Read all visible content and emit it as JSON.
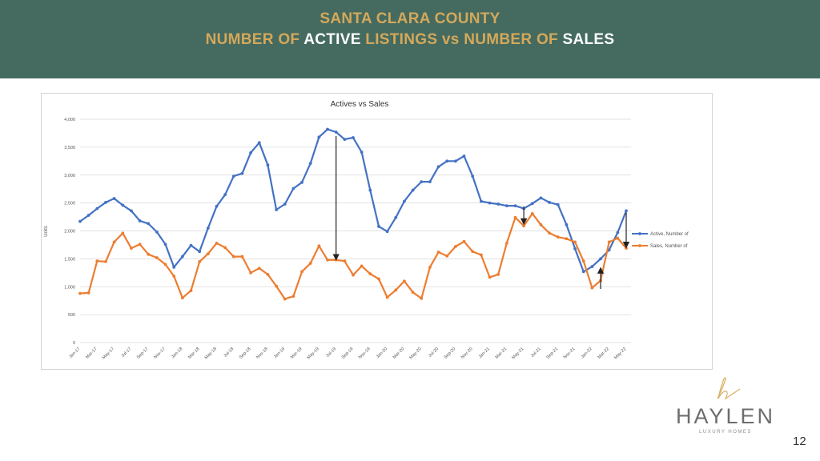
{
  "header": {
    "title_line1": "SANTA CLARA COUNTY",
    "title_line2_parts": [
      {
        "text": "NUMBER OF ",
        "color": "gold"
      },
      {
        "text": "ACTIVE",
        "color": "white"
      },
      {
        "text": " LISTINGS vs ",
        "color": "gold"
      },
      {
        "text": "NUMBER OF ",
        "color": "gold"
      },
      {
        "text": "SALES",
        "color": "white"
      }
    ],
    "background_color": "#456b60",
    "gold_color": "#d4a85a"
  },
  "chart_data": {
    "type": "line",
    "title": "Actives vs Sales",
    "ylabel": "Units",
    "xlabel": "",
    "ylim": [
      0,
      4000
    ],
    "yticks": [
      "0",
      "500",
      "1,000",
      "1,500",
      "2,000",
      "2,500",
      "3,000",
      "3,500",
      "4,000"
    ],
    "xtick_labels": [
      "Jan-17",
      "Mar-17",
      "May-17",
      "Jul-17",
      "Sep-17",
      "Nov-17",
      "Jan-18",
      "Mar-18",
      "May-18",
      "Jul-18",
      "Sep-18",
      "Nov-18",
      "Jan-19",
      "Mar-19",
      "May-19",
      "Jul-19",
      "Sep-19",
      "Nov-19",
      "Jan-20",
      "Mar-20",
      "May-20",
      "Jul-20",
      "Sep-20",
      "Nov-20",
      "Jan-21",
      "Mar-21",
      "May-21",
      "Jul-21",
      "Sep-21",
      "Nov-21",
      "Jan-22",
      "Mar-22",
      "May-22"
    ],
    "grid": "horizontal",
    "legend_position": "right",
    "series": [
      {
        "name": "Active, Number of",
        "color": "#4472c4",
        "values": [
          2170,
          2280,
          2400,
          2510,
          2580,
          2460,
          2360,
          2180,
          2130,
          1980,
          1760,
          1350,
          1540,
          1740,
          1630,
          2050,
          2440,
          2650,
          2980,
          3030,
          3400,
          3580,
          3180,
          2380,
          2480,
          2760,
          2870,
          3210,
          3680,
          3820,
          3770,
          3640,
          3670,
          3410,
          2730,
          2080,
          1990,
          2240,
          2530,
          2730,
          2880,
          2880,
          3150,
          3250,
          3250,
          3340,
          2980,
          2530,
          2500,
          2480,
          2450,
          2450,
          2400,
          2490,
          2590,
          2510,
          2470,
          2110,
          1680,
          1270,
          1360,
          1500,
          1660,
          1970,
          2360
        ]
      },
      {
        "name": "Sales, Number of",
        "color": "#ed7d31",
        "values": [
          880,
          890,
          1460,
          1450,
          1800,
          1960,
          1690,
          1760,
          1580,
          1520,
          1400,
          1190,
          800,
          930,
          1450,
          1590,
          1780,
          1700,
          1540,
          1540,
          1250,
          1330,
          1220,
          1010,
          780,
          830,
          1270,
          1420,
          1730,
          1480,
          1480,
          1460,
          1210,
          1370,
          1230,
          1140,
          810,
          940,
          1100,
          900,
          790,
          1350,
          1620,
          1550,
          1720,
          1810,
          1630,
          1570,
          1170,
          1220,
          1780,
          2240,
          2090,
          2310,
          2110,
          1960,
          1890,
          1860,
          1800,
          1460,
          980,
          1110,
          1800,
          1870,
          1690
        ]
      }
    ],
    "annotations": [
      {
        "type": "arrow",
        "x_index": 30,
        "from": 3700,
        "to": 1500
      },
      {
        "type": "arrow",
        "x_index": 52,
        "from": 2440,
        "to": 2140
      },
      {
        "type": "arrow",
        "x_index": 61,
        "from": 960,
        "to": 1320
      },
      {
        "type": "arrow",
        "x_index": 64,
        "from": 2330,
        "to": 1720
      }
    ]
  },
  "brand": {
    "name": "HAYLEN",
    "tagline": "LUXURY HOMES",
    "logo_color": "#d9b36a"
  },
  "page_number": "12"
}
